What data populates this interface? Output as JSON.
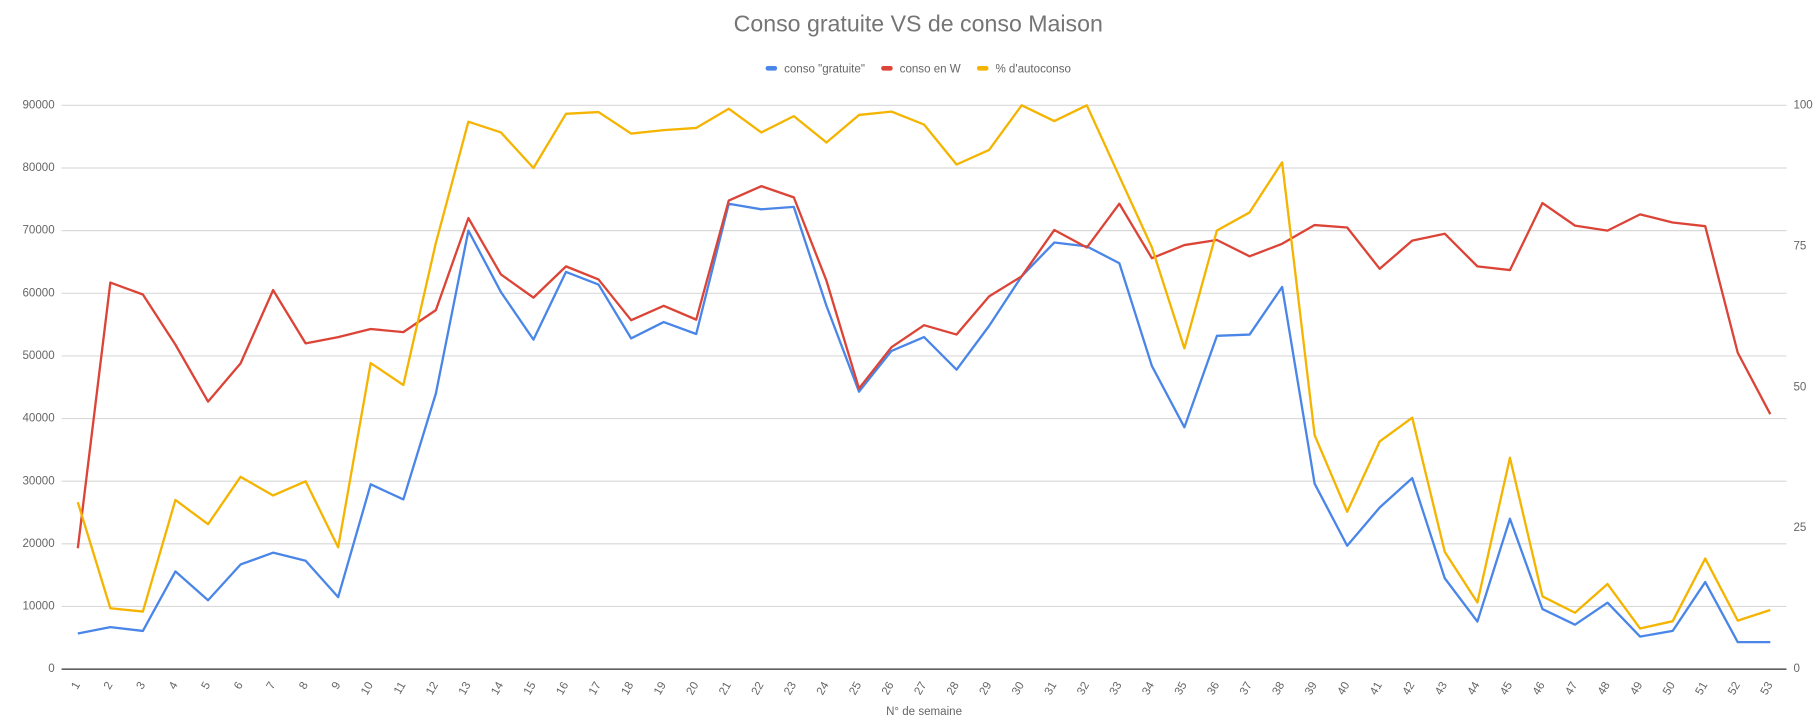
{
  "chart_data": {
    "type": "line",
    "title": "Conso gratuite VS de conso Maison",
    "x_label": "N° de semaine",
    "categories": [
      "1",
      "2",
      "3",
      "4",
      "5",
      "6",
      "7",
      "8",
      "9",
      "10",
      "11",
      "12",
      "13",
      "14",
      "15",
      "16",
      "17",
      "18",
      "19",
      "20",
      "21",
      "22",
      "23",
      "24",
      "25",
      "26",
      "27",
      "28",
      "29",
      "30",
      "31",
      "32",
      "33",
      "34",
      "35",
      "36",
      "37",
      "38",
      "39",
      "40",
      "41",
      "42",
      "43",
      "44",
      "45",
      "46",
      "47",
      "48",
      "49",
      "50",
      "51",
      "52",
      "53"
    ],
    "ylim": [
      0,
      90000
    ],
    "yticks": [
      0,
      10000,
      20000,
      30000,
      40000,
      50000,
      60000,
      70000,
      80000,
      90000
    ],
    "y2lim": [
      0,
      100
    ],
    "y2ticks": [
      0,
      25,
      50,
      75,
      100
    ],
    "grid": true,
    "legend": "top",
    "series": [
      {
        "name": "conso \"gratuite\"",
        "color": "#4a86e8",
        "values": [
          5700,
          6700,
          6100,
          15600,
          11000,
          16700,
          18600,
          17300,
          11500,
          29500,
          27100,
          44000,
          70000,
          60200,
          52600,
          63400,
          61400,
          52800,
          55400,
          53500,
          74300,
          73400,
          73800,
          58000,
          44300,
          50800,
          53000,
          47800,
          54800,
          62700,
          68100,
          67500,
          64800,
          48400,
          38600,
          53200,
          53400,
          61000,
          29600,
          19700,
          25800,
          30500,
          14500,
          7600,
          24000,
          9600,
          7100,
          10600,
          5200,
          6100,
          13900,
          4300,
          4300
        ]
      },
      {
        "name": "conso en W",
        "color": "#db4437",
        "values": [
          19300,
          61700,
          59800,
          51800,
          42700,
          48800,
          60500,
          52000,
          53000,
          54300,
          53800,
          57300,
          72000,
          63000,
          59300,
          64300,
          62200,
          55700,
          58000,
          55800,
          74800,
          77100,
          75300,
          62000,
          44800,
          51400,
          54900,
          53400,
          59500,
          62700,
          70100,
          67300,
          74300,
          65600,
          67700,
          68500,
          65900,
          67900,
          70900,
          70500,
          63900,
          68400,
          69500,
          64300,
          63700,
          74400,
          70800,
          70000,
          72600,
          71300,
          70700,
          50500,
          40700
        ]
      },
      {
        "name": "% d'autoconso",
        "color": "#f4b400",
        "axis": "y2",
        "values": [
          29.6,
          10.8,
          10.2,
          30,
          25.7,
          34.1,
          30.8,
          33.3,
          21.6,
          54.3,
          50.4,
          75.6,
          97.1,
          95.2,
          88.9,
          98.5,
          98.8,
          95,
          95.6,
          96,
          99.4,
          95.2,
          98.1,
          93.4,
          98.3,
          98.9,
          96.6,
          89.5,
          92.1,
          100,
          97.2,
          100,
          87.4,
          74.8,
          56.9,
          77.8,
          81,
          89.9,
          41.5,
          27.9,
          40.4,
          44.6,
          20.8,
          11.8,
          37.5,
          12.9,
          10,
          15.1,
          7.2,
          8.5,
          19.6,
          8.6,
          10.5
        ]
      }
    ]
  }
}
